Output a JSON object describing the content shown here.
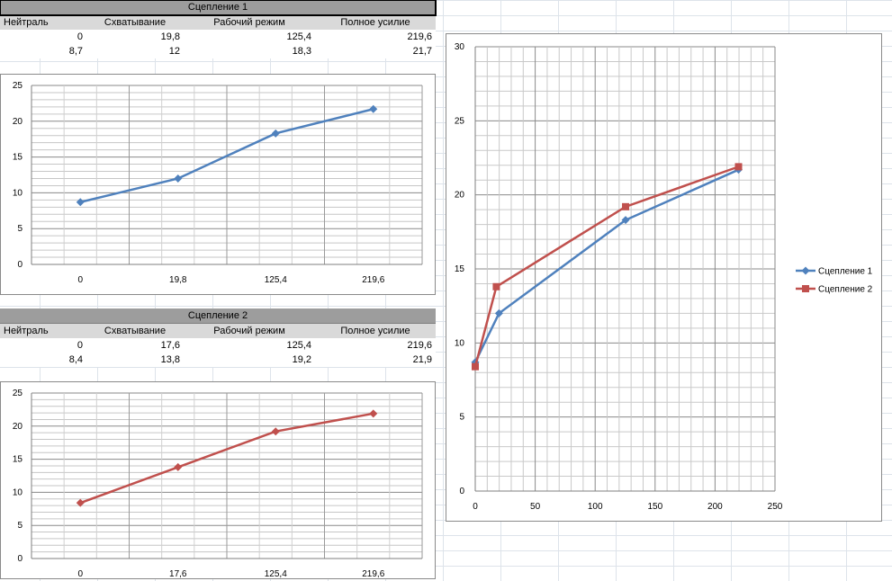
{
  "tables": [
    {
      "title": "Сцепление 1",
      "headers": [
        "Нейтраль",
        "Схватывание",
        "Рабочий режим",
        "Полное усилие"
      ],
      "row_x": [
        "0",
        "19,8",
        "125,4",
        "219,6"
      ],
      "row_y": [
        "8,7",
        "12",
        "18,3",
        "21,7"
      ]
    },
    {
      "title": "Сцепление 2",
      "headers": [
        "Нейтраль",
        "Схватывание",
        "Рабочий режим",
        "Полное усилие"
      ],
      "row_x": [
        "0",
        "17,6",
        "125,4",
        "219,6"
      ],
      "row_y": [
        "8,4",
        "13,8",
        "19,2",
        "21,9"
      ]
    }
  ],
  "colors": {
    "series1": "#4f81bd",
    "series2": "#c0504d"
  },
  "chart_data": [
    {
      "type": "line",
      "categories": [
        "0",
        "19,8",
        "125,4",
        "219,6"
      ],
      "series": [
        {
          "values": [
            8.7,
            12,
            18.3,
            21.7
          ]
        }
      ],
      "ylim": [
        0,
        25
      ],
      "yticks": [
        "0",
        "5",
        "10",
        "15",
        "20",
        "25"
      ],
      "grid": true,
      "legend": "none"
    },
    {
      "type": "line",
      "categories": [
        "0",
        "17,6",
        "125,4",
        "219,6"
      ],
      "series": [
        {
          "values": [
            8.4,
            13.8,
            19.2,
            21.9
          ]
        }
      ],
      "ylim": [
        0,
        25
      ],
      "yticks": [
        "0",
        "5",
        "10",
        "15",
        "20",
        "25"
      ],
      "grid": true,
      "legend": "none"
    },
    {
      "type": "scatter",
      "series": [
        {
          "name": "Сцепление 1",
          "x": [
            0,
            19.8,
            125.4,
            219.6
          ],
          "y": [
            8.7,
            12,
            18.3,
            21.7
          ]
        },
        {
          "name": "Сцепление 2",
          "x": [
            0,
            17.6,
            125.4,
            219.6
          ],
          "y": [
            8.4,
            13.8,
            19.2,
            21.9
          ]
        }
      ],
      "xlim": [
        0,
        250
      ],
      "ylim": [
        0,
        30
      ],
      "xticks": [
        "0",
        "50",
        "100",
        "150",
        "200",
        "250"
      ],
      "yticks": [
        "0",
        "5",
        "10",
        "15",
        "20",
        "25",
        "30"
      ],
      "grid": true,
      "legend": "right"
    }
  ]
}
